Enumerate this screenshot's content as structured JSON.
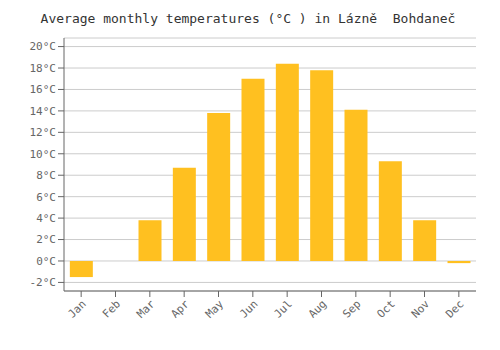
{
  "chart_data": {
    "type": "bar",
    "title": "Average monthly temperatures (°C ) in Lázně  Bohdaneč",
    "categories": [
      "Jan",
      "Feb",
      "Mar",
      "Apr",
      "May",
      "Jun",
      "Jul",
      "Aug",
      "Sep",
      "Oct",
      "Nov",
      "Dec"
    ],
    "values": [
      -1.5,
      0.0,
      3.8,
      8.7,
      13.8,
      17.0,
      18.4,
      17.8,
      14.1,
      9.3,
      3.8,
      -0.2
    ],
    "color": "#FFC020",
    "ylim": [
      -2.8,
      20.8
    ],
    "yticks": [
      {
        "value": -2,
        "label": "-2°C"
      },
      {
        "value": 0,
        "label": "0°C"
      },
      {
        "value": 2,
        "label": "2°C"
      },
      {
        "value": 4,
        "label": "4°C"
      },
      {
        "value": 6,
        "label": "6°C"
      },
      {
        "value": 8,
        "label": "8°C"
      },
      {
        "value": 10,
        "label": "10°C"
      },
      {
        "value": 12,
        "label": "12°C"
      },
      {
        "value": 14,
        "label": "14°C"
      },
      {
        "value": 16,
        "label": "16°C"
      },
      {
        "value": 18,
        "label": "18°C"
      },
      {
        "value": 20,
        "label": "20°C"
      }
    ],
    "grid": true
  }
}
